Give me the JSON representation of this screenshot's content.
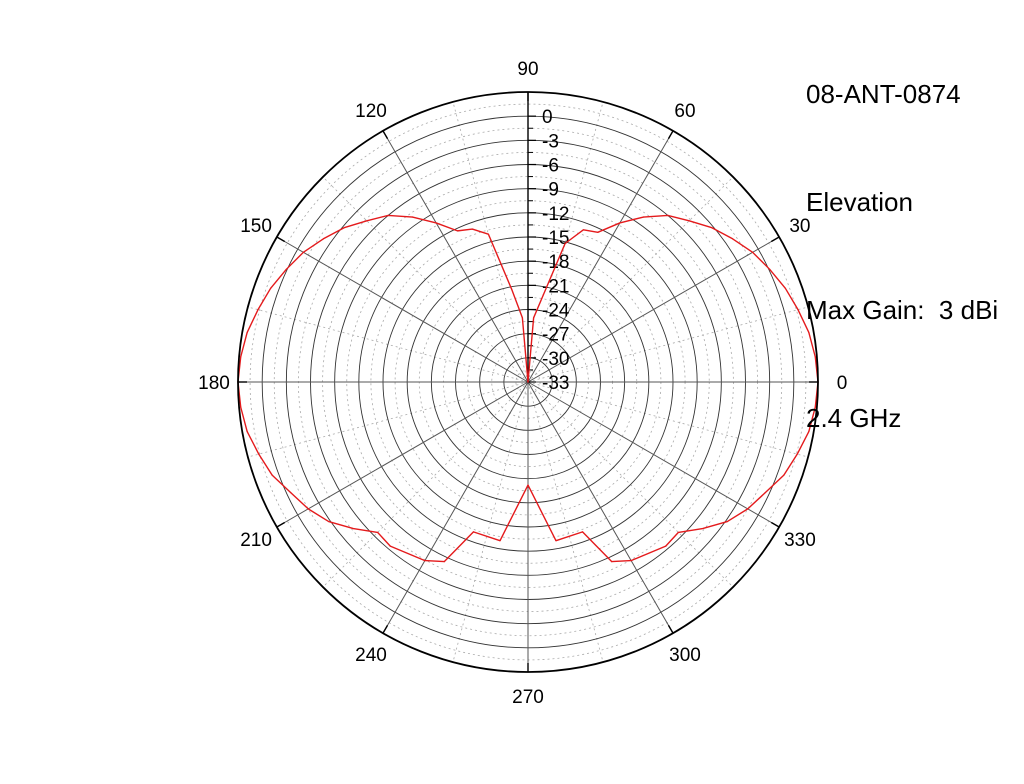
{
  "info": {
    "model": "08-ANT-0874",
    "plane": "Elevation",
    "max_gain": "Max Gain:  3 dBi",
    "frequency": "2.4 GHz"
  },
  "chart_data": {
    "type": "polar-line",
    "title": "",
    "angle_ticks": [
      "0",
      "30",
      "60",
      "90",
      "120",
      "150",
      "180",
      "210",
      "240",
      "270",
      "300",
      "330"
    ],
    "radial_ticks": [
      "0",
      "-3",
      "-6",
      "-9",
      "-12",
      "-15",
      "-18",
      "-21",
      "-24",
      "-27",
      "-30",
      "-33"
    ],
    "radial_range": [
      -33,
      3
    ],
    "grid": true,
    "series": [
      {
        "color": "#e41a1c",
        "points": [
          [
            0,
            3
          ],
          [
            5,
            2.8
          ],
          [
            10,
            2.4
          ],
          [
            15,
            1.7
          ],
          [
            20,
            1.0
          ],
          [
            25,
            0.1
          ],
          [
            30,
            -0.8
          ],
          [
            35,
            -2
          ],
          [
            40,
            -3.2
          ],
          [
            45,
            -4.7
          ],
          [
            50,
            -6
          ],
          [
            55,
            -8
          ],
          [
            60,
            -10.2
          ],
          [
            65,
            -12.5
          ],
          [
            70,
            -12.9
          ],
          [
            75,
            -15.2
          ],
          [
            80,
            -22
          ],
          [
            85,
            -25
          ],
          [
            90,
            -33
          ],
          [
            95,
            -25
          ],
          [
            100,
            -21.3
          ],
          [
            105,
            -14
          ],
          [
            110,
            -12.8
          ],
          [
            115,
            -12.3
          ],
          [
            120,
            -10.2
          ],
          [
            125,
            -8
          ],
          [
            130,
            -6
          ],
          [
            135,
            -4.7
          ],
          [
            140,
            -3.2
          ],
          [
            145,
            -2
          ],
          [
            150,
            -0.8
          ],
          [
            155,
            0.1
          ],
          [
            160,
            1.0
          ],
          [
            165,
            1.7
          ],
          [
            170,
            2.4
          ],
          [
            175,
            2.8
          ],
          [
            180,
            3
          ],
          [
            185,
            2.8
          ],
          [
            190,
            2.4
          ],
          [
            195,
            1.6
          ],
          [
            200,
            0.8
          ],
          [
            205,
            -0.5
          ],
          [
            210,
            -1.5
          ],
          [
            215,
            -2.8
          ],
          [
            220,
            -4.7
          ],
          [
            225,
            -6.6
          ],
          [
            230,
            -6.4
          ],
          [
            240,
            -7.4
          ],
          [
            245,
            -8.4
          ],
          [
            250,
            -13.2
          ],
          [
            260,
            -13
          ],
          [
            270,
            -20.2
          ],
          [
            280,
            -13
          ],
          [
            290,
            -13.2
          ],
          [
            295,
            -8.4
          ],
          [
            300,
            -7.4
          ],
          [
            310,
            -6.4
          ],
          [
            315,
            -6.6
          ],
          [
            320,
            -4.7
          ],
          [
            325,
            -2.8
          ],
          [
            330,
            -1.5
          ],
          [
            335,
            -0.5
          ],
          [
            340,
            0.8
          ],
          [
            345,
            1.6
          ],
          [
            350,
            2.4
          ],
          [
            355,
            2.8
          ],
          [
            360,
            3
          ]
        ]
      }
    ]
  }
}
